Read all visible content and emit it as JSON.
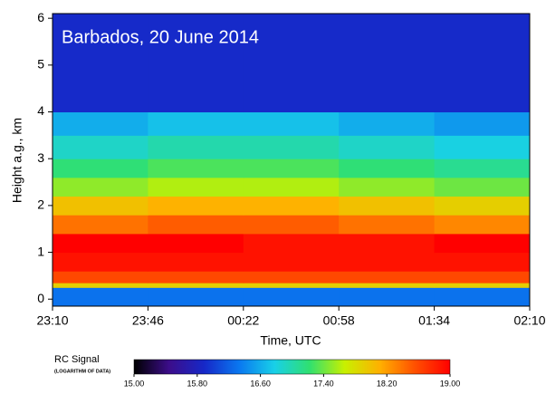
{
  "chart_data": {
    "type": "heatmap",
    "title": "Barbados, 20 June 2014",
    "x_label": "Time, UTC",
    "y_label": "Height a.g., km",
    "xlim": [
      0,
      180
    ],
    "xticks": [
      {
        "value": 0,
        "label": "23:10"
      },
      {
        "value": 36,
        "label": "23:46"
      },
      {
        "value": 72,
        "label": "00:22"
      },
      {
        "value": 108,
        "label": "00:58"
      },
      {
        "value": 144,
        "label": "01:34"
      },
      {
        "value": 180,
        "label": "02:10"
      }
    ],
    "ylim": [
      -0.15,
      6.1
    ],
    "yticks": [
      0,
      1,
      2,
      3,
      4,
      5,
      6
    ],
    "xbins": [
      0,
      36,
      72,
      108,
      144,
      180
    ],
    "ybins": [
      -0.15,
      0.25,
      0.35,
      0.6,
      1.0,
      1.4,
      1.8,
      2.2,
      2.6,
      3.0,
      3.5,
      4.0,
      6.1
    ],
    "values": [
      [
        16.3,
        16.3,
        16.3,
        16.3,
        16.3
      ],
      [
        17.9,
        17.9,
        17.9,
        17.9,
        17.9
      ],
      [
        18.6,
        18.6,
        18.6,
        18.6,
        18.6
      ],
      [
        18.9,
        18.9,
        18.9,
        18.9,
        18.9
      ],
      [
        19.0,
        19.0,
        18.9,
        18.9,
        19.0
      ],
      [
        18.4,
        18.5,
        18.5,
        18.4,
        18.3
      ],
      [
        18.0,
        18.1,
        18.1,
        18.0,
        17.9
      ],
      [
        17.5,
        17.6,
        17.6,
        17.5,
        17.4
      ],
      [
        17.2,
        17.3,
        17.3,
        17.2,
        17.1
      ],
      [
        16.9,
        17.0,
        17.0,
        16.9,
        16.8
      ],
      [
        16.6,
        16.7,
        16.7,
        16.6,
        16.5
      ],
      [
        15.9,
        15.9,
        15.9,
        15.9,
        15.9
      ]
    ],
    "colorbar_title": "RC Signal",
    "colorbar_subtitle": "(LOGARITHM OF DATA)",
    "clim": [
      15,
      19
    ],
    "colorbar_ticks": [
      {
        "value": 15,
        "label": "15.00"
      },
      {
        "value": 15.8,
        "label": "15.80"
      },
      {
        "value": 16.6,
        "label": "16.60"
      },
      {
        "value": 17.4,
        "label": "17.40"
      },
      {
        "value": 18.2,
        "label": "18.20"
      },
      {
        "value": 19,
        "label": "19.00"
      }
    ],
    "colormap": [
      "#000000",
      "#3c0d8a",
      "#1628c8",
      "#0a78f0",
      "#18d0e8",
      "#30e070",
      "#c8f000",
      "#ffb000",
      "#ff5000",
      "#ff0000"
    ]
  }
}
